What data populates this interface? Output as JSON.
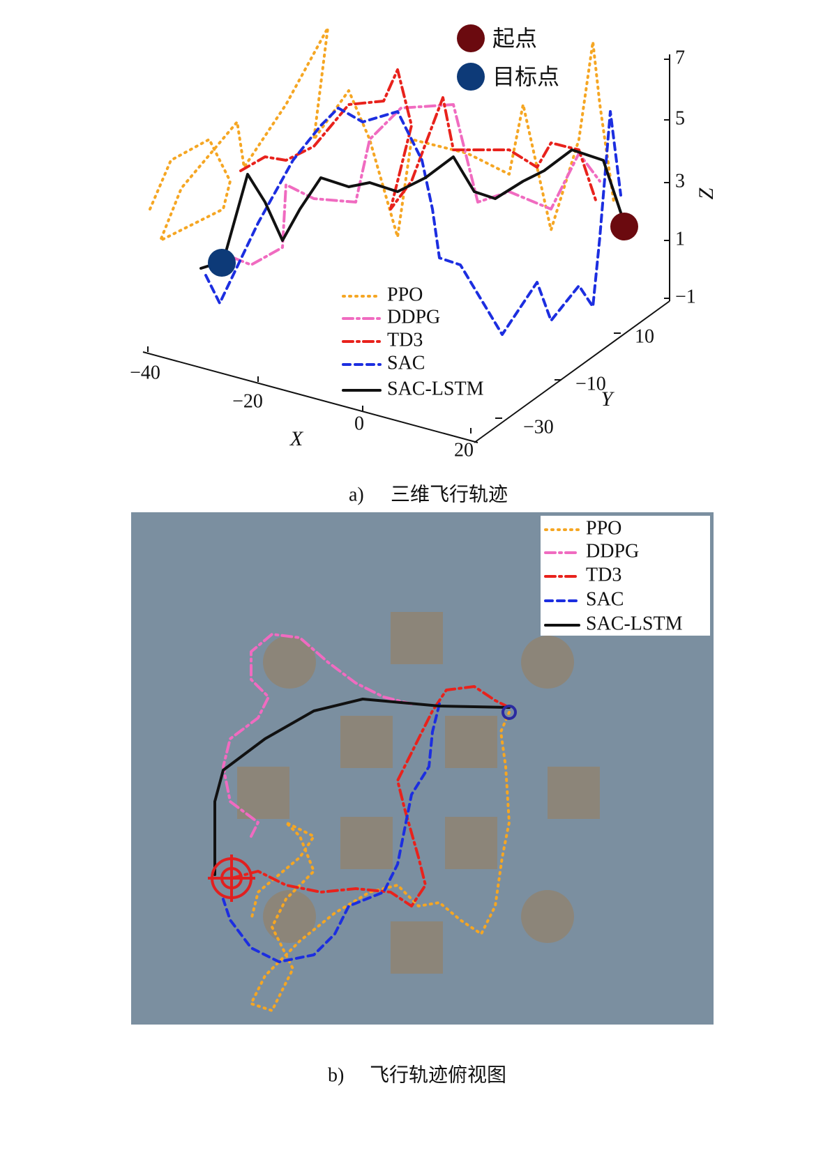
{
  "panel_a": {
    "start_marker": "起点",
    "target_marker": "目标点",
    "z_axis": {
      "label": "Z",
      "ticks": [
        "7",
        "5",
        "3",
        "1",
        "−1"
      ]
    },
    "x_axis": {
      "label": "X",
      "ticks": [
        "−40",
        "−20",
        "0",
        "20"
      ]
    },
    "y_axis": {
      "label": "Y",
      "ticks": [
        "10",
        "−10",
        "−30"
      ]
    },
    "legend": [
      "PPO",
      "DDPG",
      "TD3",
      "SAC",
      "SAC-LSTM"
    ],
    "caption": {
      "label": "a)",
      "text": "三维飞行轨迹"
    }
  },
  "panel_b": {
    "legend": [
      "PPO",
      "DDPG",
      "TD3",
      "SAC",
      "SAC-LSTM"
    ],
    "caption": {
      "label": "b)",
      "text": "飞行轨迹俯视图"
    }
  }
}
